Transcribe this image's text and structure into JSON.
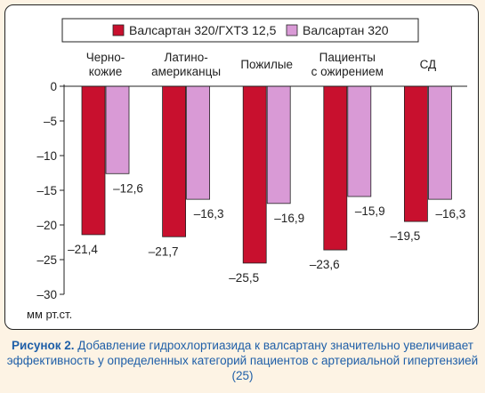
{
  "chart_data": {
    "type": "bar",
    "categories": [
      "Черно-\nкожие",
      "Латино-\nамериканцы",
      "Пожилые",
      "Пациенты\nс ожирением",
      "СД"
    ],
    "series": [
      {
        "name": "Валсартан 320/ГХТЗ 12,5",
        "color": "#c8102e",
        "values": [
          -21.4,
          -21.7,
          -25.5,
          -23.6,
          -19.5
        ],
        "labels": [
          "–21,4",
          "–21,7",
          "–25,5",
          "–23,6",
          "–19,5"
        ]
      },
      {
        "name": "Валсартан 320",
        "color": "#d99ad6",
        "values": [
          -12.6,
          -16.3,
          -16.9,
          -15.9,
          -16.3
        ],
        "labels": [
          "–12,6",
          "–16,3",
          "–16,9",
          "–15,9",
          "–16,3"
        ]
      }
    ],
    "ylim": [
      -30,
      0
    ],
    "yticks": [
      0,
      -5,
      -10,
      -15,
      -20,
      -25,
      -30
    ],
    "ytick_labels": [
      "0",
      "–5",
      "–10",
      "–15",
      "–20",
      "–25",
      "–30"
    ],
    "ylabel": "мм рт.ст.",
    "legend": "top",
    "grid": false
  },
  "caption": {
    "label": "Рисунок 2.",
    "text": "Добавление гидрохлортиазида к валсартану значительно увеличивает эффективность у определенных категорий пациентов с артериальной гипертензией (25)"
  },
  "colors": {
    "background": "#fdf3e4",
    "caption": "#1f5fa8",
    "series_dark": "#c8102e",
    "series_light": "#d99ad6"
  }
}
